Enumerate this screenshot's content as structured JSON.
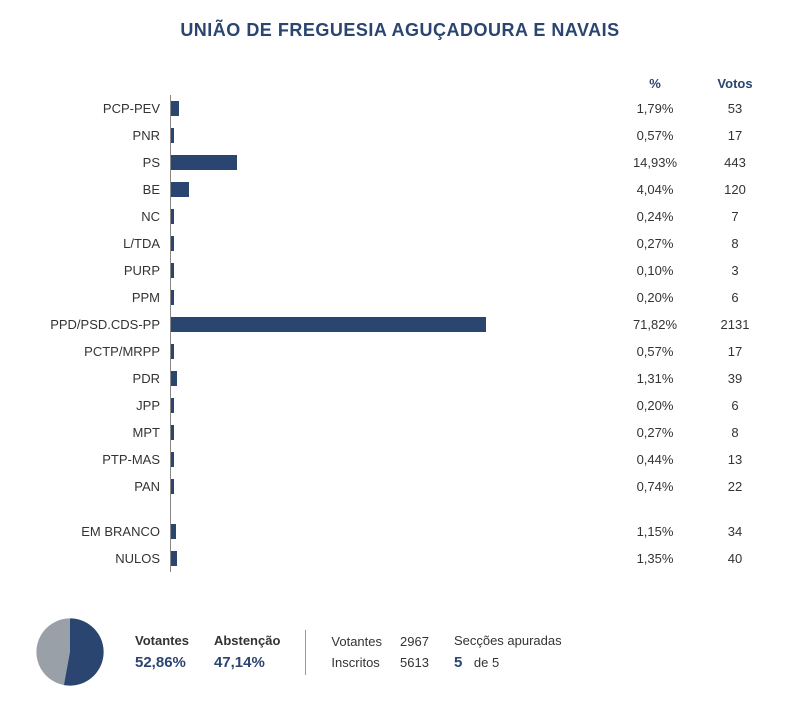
{
  "title": "UNIÃO DE FREGUESIA AGUÇADOURA E NAVAIS",
  "headers": {
    "pct": "%",
    "votes": "Votos"
  },
  "bar_color": "#2a4570",
  "axis_color": "#888888",
  "max_pct": 100,
  "parties": [
    {
      "label": "PCP-PEV",
      "pct": "1,79%",
      "pct_num": 1.79,
      "votes": "53"
    },
    {
      "label": "PNR",
      "pct": "0,57%",
      "pct_num": 0.57,
      "votes": "17"
    },
    {
      "label": "PS",
      "pct": "14,93%",
      "pct_num": 14.93,
      "votes": "443"
    },
    {
      "label": "BE",
      "pct": "4,04%",
      "pct_num": 4.04,
      "votes": "120"
    },
    {
      "label": "NC",
      "pct": "0,24%",
      "pct_num": 0.24,
      "votes": "7"
    },
    {
      "label": "L/TDA",
      "pct": "0,27%",
      "pct_num": 0.27,
      "votes": "8"
    },
    {
      "label": "PURP",
      "pct": "0,10%",
      "pct_num": 0.1,
      "votes": "3"
    },
    {
      "label": "PPM",
      "pct": "0,20%",
      "pct_num": 0.2,
      "votes": "6"
    },
    {
      "label": "PPD/PSD.CDS-PP",
      "pct": "71,82%",
      "pct_num": 71.82,
      "votes": "2131"
    },
    {
      "label": "PCTP/MRPP",
      "pct": "0,57%",
      "pct_num": 0.57,
      "votes": "17"
    },
    {
      "label": "PDR",
      "pct": "1,31%",
      "pct_num": 1.31,
      "votes": "39"
    },
    {
      "label": "JPP",
      "pct": "0,20%",
      "pct_num": 0.2,
      "votes": "6"
    },
    {
      "label": "MPT",
      "pct": "0,27%",
      "pct_num": 0.27,
      "votes": "8"
    },
    {
      "label": "PTP-MAS",
      "pct": "0,44%",
      "pct_num": 0.44,
      "votes": "13"
    },
    {
      "label": "PAN",
      "pct": "0,74%",
      "pct_num": 0.74,
      "votes": "22"
    }
  ],
  "extras": [
    {
      "label": "EM BRANCO",
      "pct": "1,15%",
      "pct_num": 1.15,
      "votes": "34"
    },
    {
      "label": "NULOS",
      "pct": "1,35%",
      "pct_num": 1.35,
      "votes": "40"
    }
  ],
  "footer": {
    "votantes_label": "Votantes",
    "votantes_pct": "52,86%",
    "votantes_pct_num": 52.86,
    "abstencao_label": "Abstenção",
    "abstencao_pct": "47,14%",
    "abstencao_pct_num": 47.14,
    "votantes_count_label": "Votantes",
    "votantes_count": "2967",
    "inscritos_label": "Inscritos",
    "inscritos_count": "5613",
    "seccoes_label": "Secções apuradas",
    "seccoes_done": "5",
    "seccoes_of": "de 5",
    "pie_votantes_color": "#2a4570",
    "pie_abstencao_color": "#9aa0a8"
  }
}
